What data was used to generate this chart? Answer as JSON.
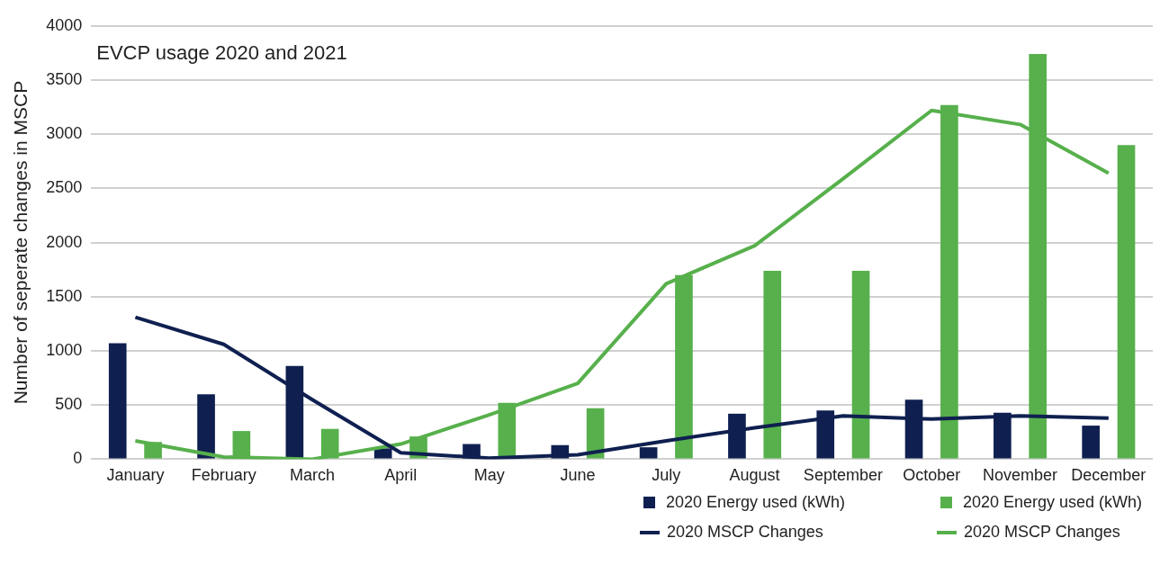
{
  "chart_data": {
    "type": "bar",
    "title": "EVCP usage 2020 and 2021",
    "ylabel": "Number of seperate changes in MSCP",
    "categories": [
      "January",
      "February",
      "March",
      "April",
      "May",
      "June",
      "July",
      "August",
      "September",
      "October",
      "November",
      "December"
    ],
    "series": [
      {
        "name": "2020 Energy used (kWh)",
        "color": "#0f2050",
        "values": [
          1070,
          600,
          860,
          100,
          140,
          130,
          110,
          420,
          450,
          550,
          430,
          310
        ]
      },
      {
        "name": "2020 Energy used (kWh)",
        "color": "#57b04c",
        "values": [
          160,
          260,
          280,
          210,
          520,
          470,
          1700,
          1740,
          1740,
          3270,
          3740,
          2900
        ]
      },
      {
        "name": "2020 MSCP Changes",
        "type": "line",
        "color": "#0f2050",
        "values": [
          1310,
          1060,
          550,
          60,
          10,
          40,
          170,
          290,
          400,
          370,
          400,
          380
        ]
      },
      {
        "name": "2020 MSCP Changes",
        "type": "line",
        "color": "#57b04c",
        "values": [
          170,
          20,
          0,
          140,
          410,
          700,
          1620,
          1970,
          2590,
          3220,
          3090,
          2640
        ]
      }
    ],
    "ylim": [
      0,
      4000
    ],
    "yticks": [
      0,
      500,
      1000,
      1500,
      2000,
      2500,
      3000,
      3500,
      4000
    ],
    "grid": "y",
    "legend": "bottom right",
    "marker": "none",
    "line_style": "solid"
  }
}
